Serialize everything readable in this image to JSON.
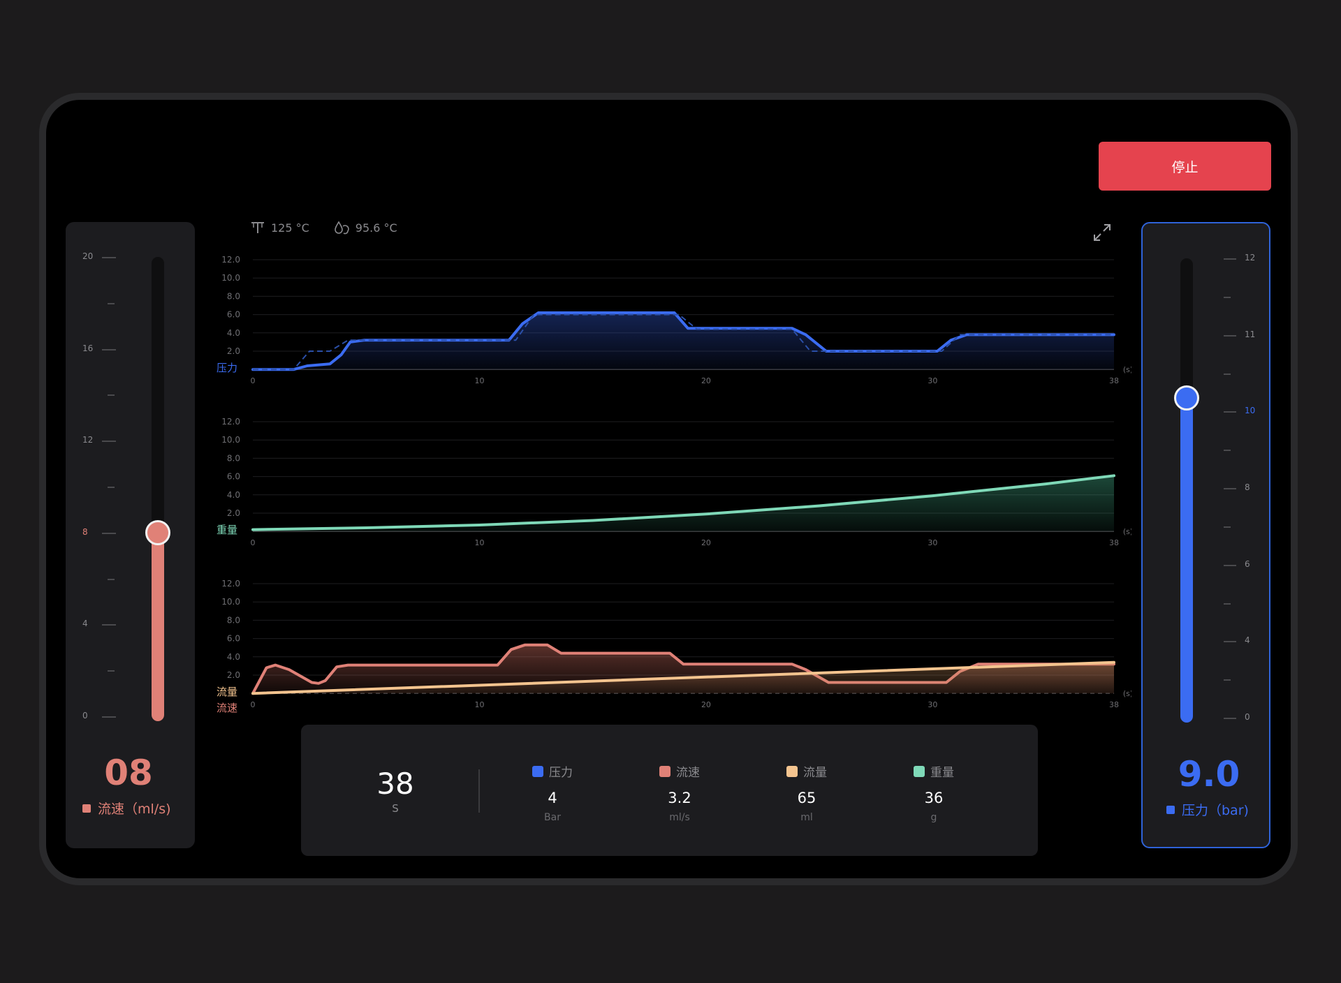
{
  "stop_button": {
    "label": "停止"
  },
  "temperatures": {
    "boiler": "125 °C",
    "water": "95.6 °C"
  },
  "flow_slider": {
    "value_display": "08",
    "unit_label": "流速（ml/s)",
    "tick_labels": [
      "20",
      "16",
      "12",
      "8",
      "4",
      "0"
    ],
    "active_tick": "8",
    "level": 8,
    "max": 20,
    "color": "#e08177"
  },
  "pressure_slider": {
    "value_display": "9.0",
    "unit_label": "压力（bar)",
    "tick_labels": [
      "12",
      "11",
      "10",
      "8",
      "6",
      "4",
      "0"
    ],
    "active_tick": "10",
    "level": 9.0,
    "color": "#3b6cf2"
  },
  "stats": {
    "time": {
      "value": "38",
      "unit": "S"
    },
    "items": [
      {
        "label": "压力",
        "value": "4",
        "unit": "Bar",
        "color": "#3b6cf2"
      },
      {
        "label": "流速",
        "value": "3.2",
        "unit": "ml/s",
        "color": "#e08177"
      },
      {
        "label": "流量",
        "value": "65",
        "unit": "ml",
        "color": "#f4c48f"
      },
      {
        "label": "重量",
        "value": "36",
        "unit": "g",
        "color": "#7fd9b8"
      }
    ]
  },
  "chart_data": [
    {
      "type": "area",
      "ylabel": "压力",
      "x_unit": "(s)",
      "xticks": [
        "0",
        "10",
        "20",
        "30",
        "38"
      ],
      "yticks": [
        "12.0",
        "10.0",
        "8.0",
        "6.0",
        "4.0",
        "2.0"
      ],
      "ylim": [
        0,
        12
      ],
      "xlim": [
        0,
        38
      ],
      "series": [
        {
          "x": [
            0,
            1.8,
            2.4,
            3.4,
            3.9,
            4.3,
            4.9,
            11.3,
            11.9,
            12.6,
            18.6,
            19.2,
            23.8,
            24.4,
            25.3,
            30.2,
            30.8,
            31.5,
            38
          ],
          "y": [
            0,
            0,
            0.4,
            0.6,
            1.6,
            3.0,
            3.2,
            3.2,
            5.0,
            6.2,
            6.2,
            4.5,
            4.5,
            3.8,
            2.0,
            2.0,
            3.2,
            3.8,
            3.8
          ],
          "color": "#3b6cf2"
        }
      ],
      "reference_dashed": {
        "x": [
          0,
          1.8,
          2.5,
          3.4,
          4.2,
          11.6,
          12.4,
          18.8,
          19.6,
          23.8,
          24.6,
          30.4,
          31.2,
          38
        ],
        "y": [
          0,
          0,
          2,
          2,
          3.2,
          3.2,
          6.0,
          6.0,
          4.4,
          4.4,
          2.0,
          2.0,
          3.8,
          3.8
        ]
      }
    },
    {
      "type": "area",
      "ylabel": "重量",
      "x_unit": "(s)",
      "xticks": [
        "0",
        "10",
        "20",
        "30",
        "38"
      ],
      "yticks": [
        "12.0",
        "10.0",
        "8.0",
        "6.0",
        "4.0",
        "2.0"
      ],
      "ylim": [
        0,
        12
      ],
      "xlim": [
        0,
        38
      ],
      "series": [
        {
          "x": [
            0,
            5,
            10,
            15,
            20,
            25,
            30,
            35,
            38
          ],
          "y": [
            0.2,
            0.4,
            0.7,
            1.2,
            1.9,
            2.8,
            3.9,
            5.2,
            6.1
          ],
          "color": "#7fd9b8"
        }
      ]
    },
    {
      "type": "area",
      "ylabel": "流量",
      "ylabel2": "流速",
      "x_unit": "(s)",
      "xticks": [
        "0",
        "10",
        "20",
        "30",
        "38"
      ],
      "yticks": [
        "12.0",
        "10.0",
        "8.0",
        "6.0",
        "4.0",
        "2.0"
      ],
      "ylim": [
        0,
        12
      ],
      "xlim": [
        0,
        38
      ],
      "series": [
        {
          "name": "流速",
          "x": [
            0,
            0.6,
            1.0,
            1.6,
            2.6,
            2.9,
            3.2,
            3.7,
            4.2,
            10.8,
            11.4,
            12.0,
            13.0,
            13.6,
            18.4,
            19.0,
            23.8,
            24.4,
            25.4,
            30.6,
            31.2,
            32.0,
            38
          ],
          "y": [
            0,
            2.8,
            3.1,
            2.6,
            1.2,
            1.1,
            1.4,
            2.9,
            3.1,
            3.1,
            4.8,
            5.3,
            5.3,
            4.4,
            4.4,
            3.2,
            3.2,
            2.6,
            1.2,
            1.2,
            2.4,
            3.2,
            3.2
          ],
          "color": "#e08177"
        },
        {
          "name": "流量",
          "x": [
            0,
            38
          ],
          "y": [
            0,
            3.4
          ],
          "color": "#f4c48f"
        }
      ]
    }
  ]
}
